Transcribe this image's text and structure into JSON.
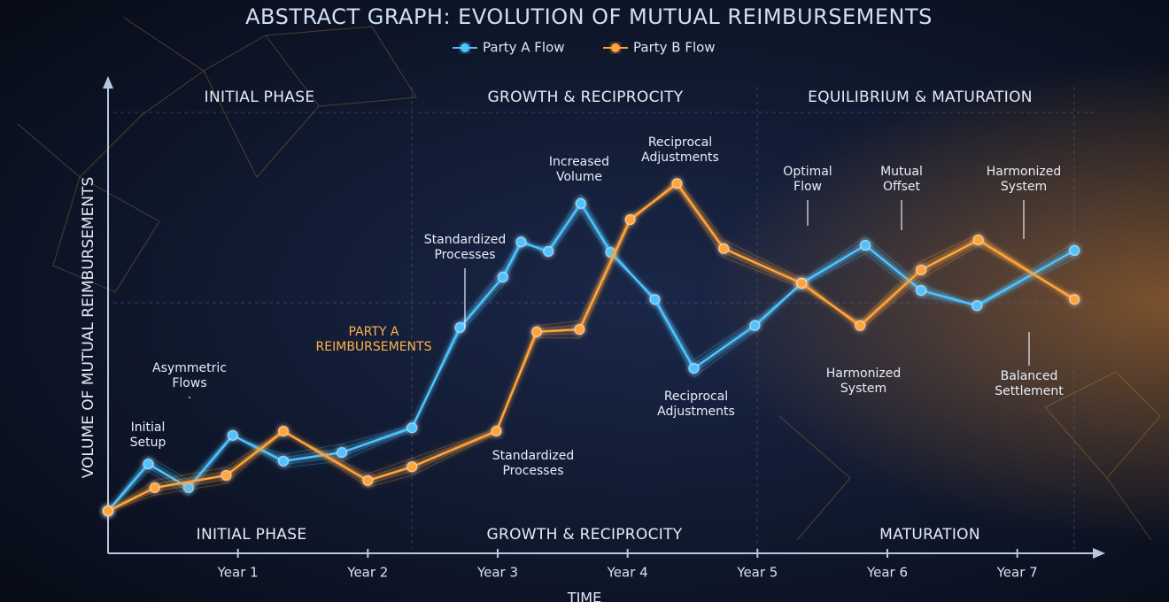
{
  "chart_data": {
    "type": "line",
    "title": "ABSTRACT GRAPH: EVOLUTION OF MUTUAL REIMBURSEMENTS",
    "x_label": "TIME",
    "y_label": "VOLUME OF MUTUAL REIMBURSEMENTS",
    "xlim": [
      0,
      7.65
    ],
    "ylim": [
      0,
      100
    ],
    "xticks": [
      {
        "value": 1,
        "label": "Year 1"
      },
      {
        "value": 2,
        "label": "Year 2"
      },
      {
        "value": 3,
        "label": "Year 3"
      },
      {
        "value": 4,
        "label": "Year 4"
      },
      {
        "value": 5,
        "label": "Year 5"
      },
      {
        "value": 6,
        "label": "Year 6"
      },
      {
        "value": 7,
        "label": "Year 7"
      }
    ],
    "legend": "top",
    "series": [
      {
        "name": "Party A Flow",
        "color": "#4fc3ff",
        "x": [
          0,
          0.31,
          0.62,
          0.96,
          1.35,
          1.8,
          2.34,
          2.71,
          3.04,
          3.18,
          3.39,
          3.64,
          3.87,
          4.21,
          4.51,
          4.98,
          5.34,
          5.83,
          6.26,
          6.69,
          7.44
        ],
        "values": [
          8.9,
          18.8,
          13.8,
          24.8,
          19.4,
          21.2,
          26.4,
          47.5,
          58.1,
          65.5,
          63.5,
          73.6,
          63.3,
          53.4,
          38.9,
          47.9,
          56.8,
          64.8,
          55.3,
          52.1,
          63.7
        ]
      },
      {
        "name": "Party B Flow",
        "color": "#ffa53a",
        "x": [
          0,
          0.36,
          0.91,
          1.35,
          2.0,
          2.34,
          2.99,
          3.3,
          3.63,
          4.02,
          4.38,
          4.74,
          5.34,
          5.79,
          6.26,
          6.7,
          7.44
        ],
        "values": [
          8.9,
          13.8,
          16.4,
          25.7,
          15.3,
          18.2,
          25.7,
          46.6,
          47.1,
          70.2,
          77.8,
          64.1,
          56.8,
          47.9,
          59.6,
          65.9,
          53.4
        ]
      }
    ],
    "phases_top": [
      "INITIAL PHASE",
      "GROWTH & RECIPROCITY",
      "EQUILIBRIUM & MATURATION"
    ],
    "phases_bottom": [
      "INITIAL PHASE",
      "GROWTH & RECIPROCITY",
      "MATURATION"
    ],
    "annotations": [
      [
        "Initial",
        "Setup"
      ],
      [
        "Asymmetric",
        "Flows"
      ],
      [
        "PARTY A",
        "REIMBURSEMENTS"
      ],
      [
        "Standardized",
        "Processes"
      ],
      [
        "Increased",
        "Volume"
      ],
      [
        "Reciprocal",
        "Adjustments"
      ],
      [
        "Standardized",
        "Processes"
      ],
      [
        "Reciprocal",
        "Adjustments"
      ],
      [
        "Optimal",
        "Flow"
      ],
      [
        "Mutual",
        "Offset"
      ],
      [
        "Harmonized",
        "System"
      ],
      [
        "Harmonized",
        "System"
      ],
      [
        "Balanced",
        "Settlement"
      ]
    ]
  }
}
